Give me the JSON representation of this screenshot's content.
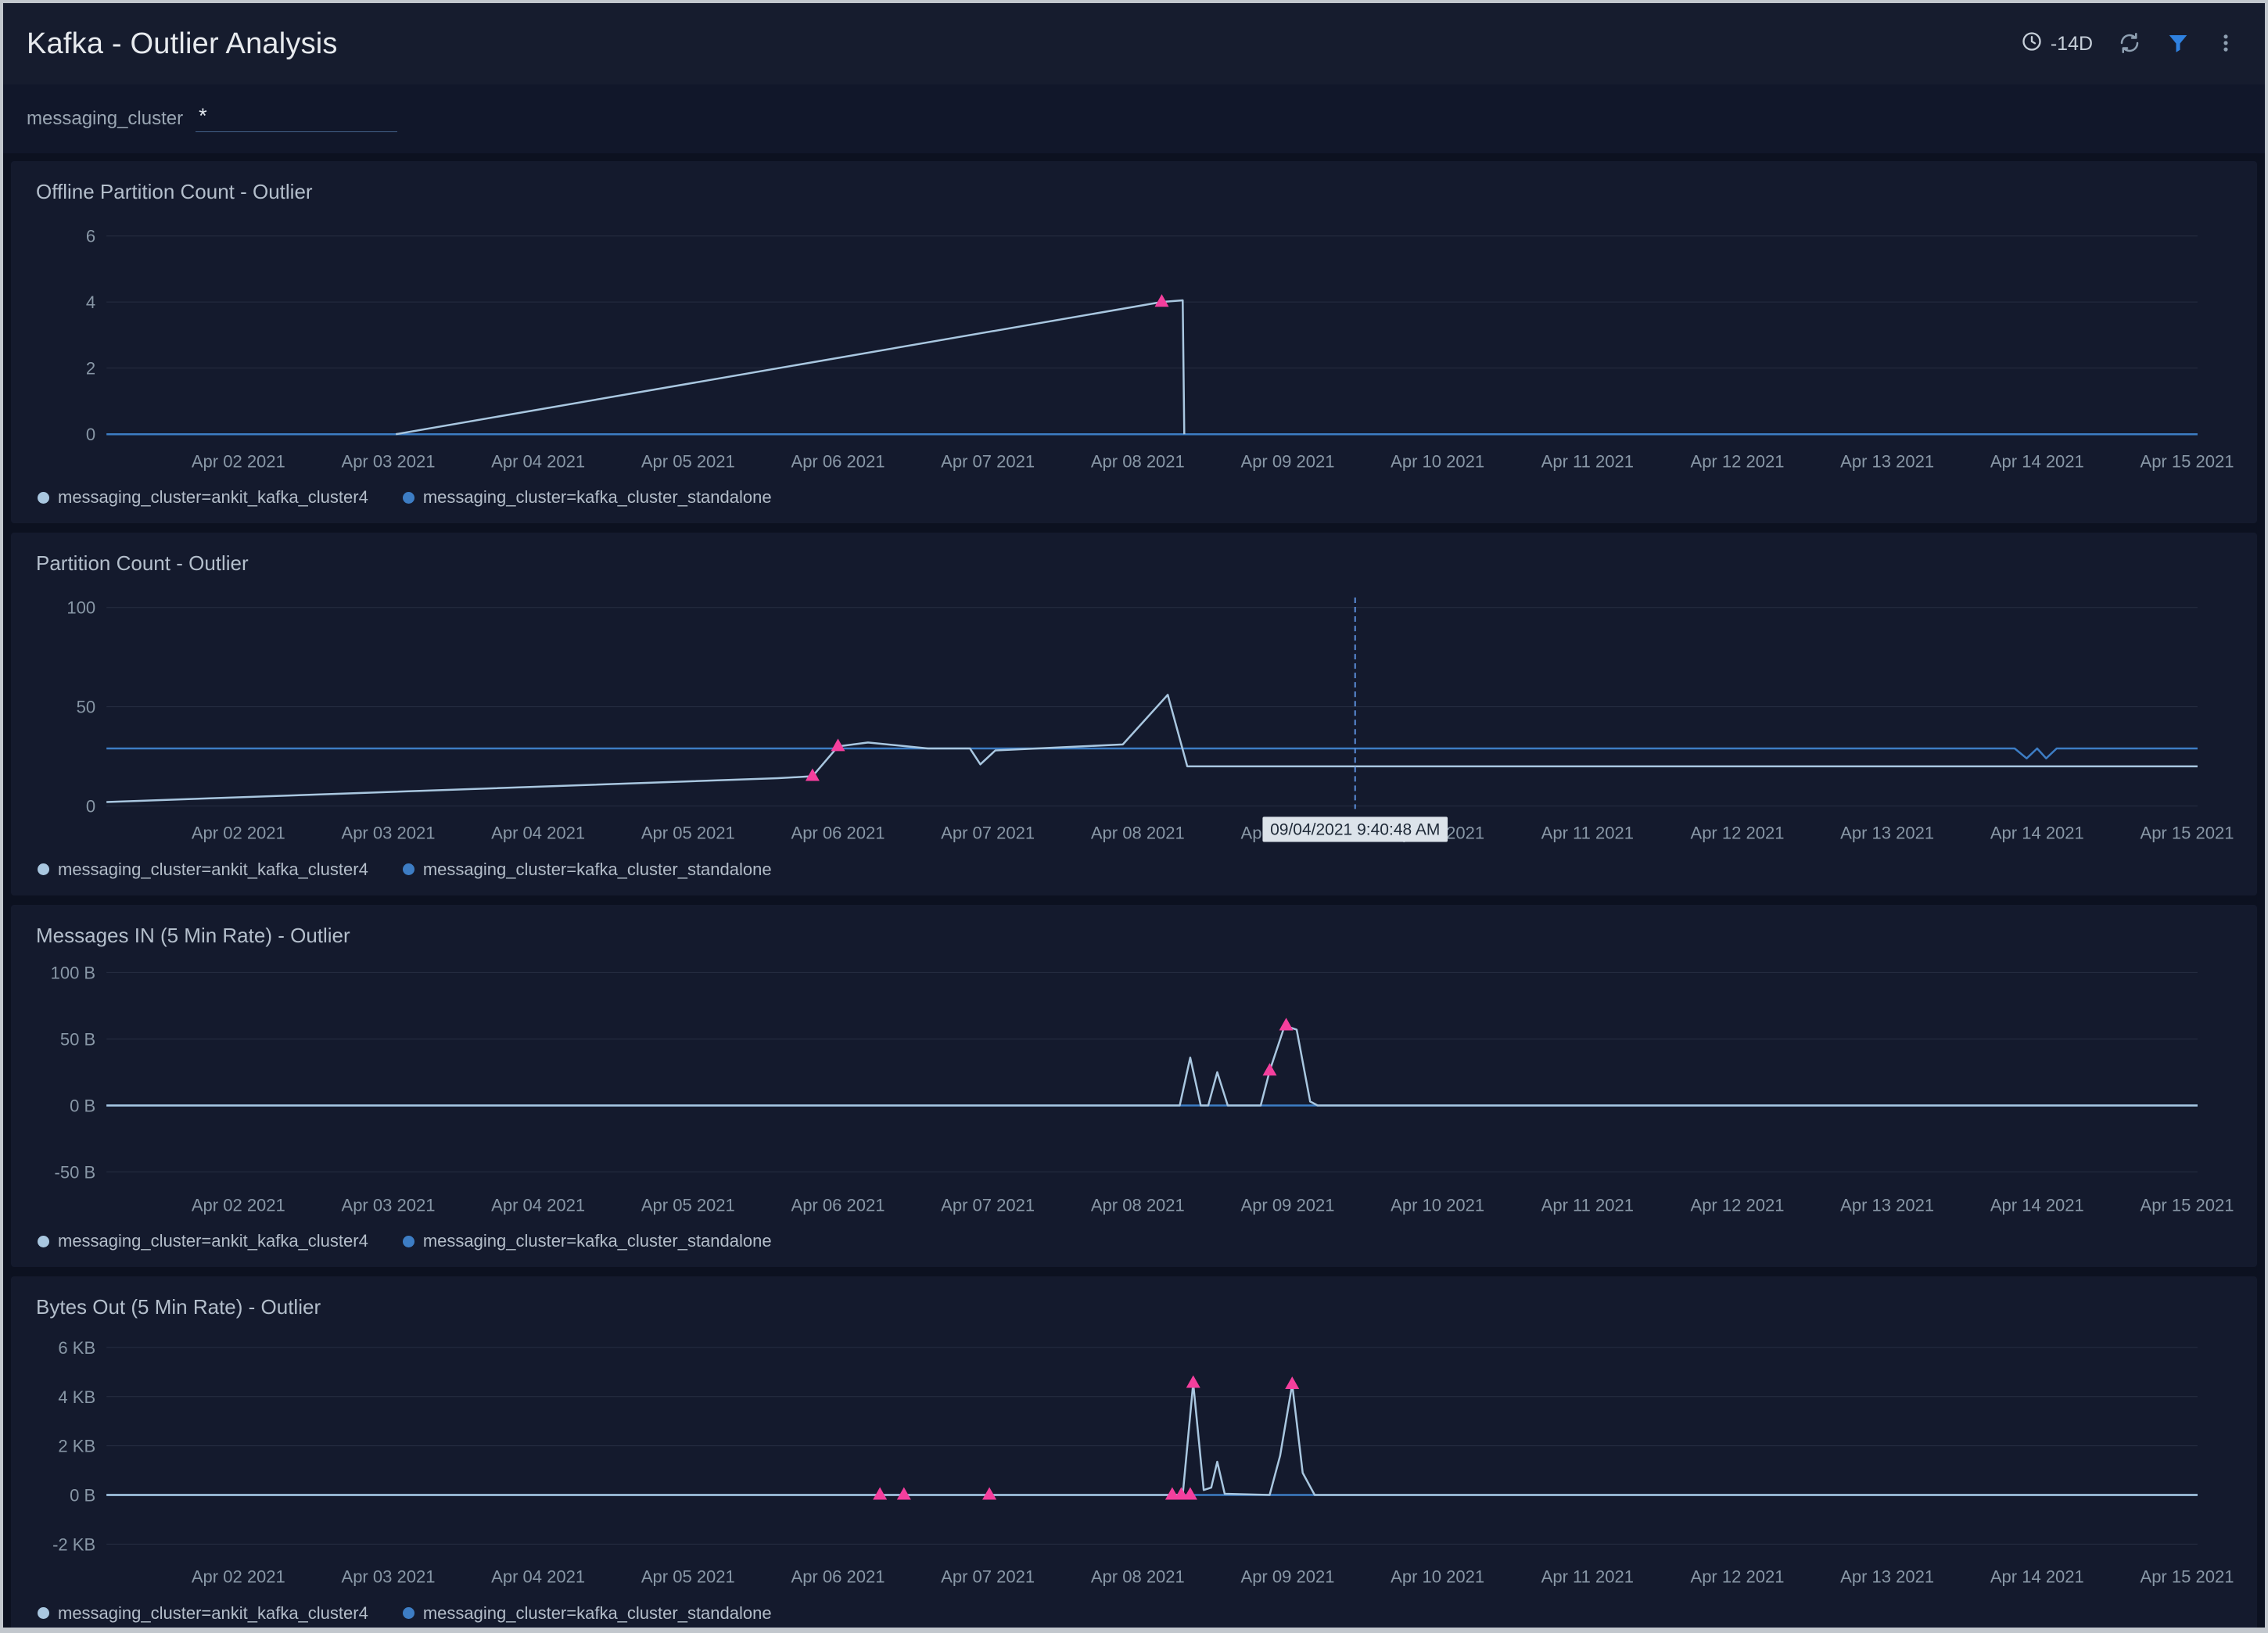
{
  "header": {
    "title": "Kafka - Outlier Analysis",
    "time_range": "-14D",
    "filter_accent": "#2f81e0"
  },
  "filter": {
    "label": "messaging_cluster",
    "value": "*"
  },
  "legend": [
    {
      "label": "messaging_cluster=ankit_kafka_cluster4",
      "color": "#a9c7e0"
    },
    {
      "label": "messaging_cluster=kafka_cluster_standalone",
      "color": "#3d7dc4"
    }
  ],
  "x_axis": {
    "xlim": [
      1.12,
      15.07
    ],
    "ticks": [
      {
        "d": 2,
        "label": "Apr 02 2021"
      },
      {
        "d": 3,
        "label": "Apr 03 2021"
      },
      {
        "d": 4,
        "label": "Apr 04 2021"
      },
      {
        "d": 5,
        "label": "Apr 05 2021"
      },
      {
        "d": 6,
        "label": "Apr 06 2021"
      },
      {
        "d": 7,
        "label": "Apr 07 2021"
      },
      {
        "d": 8,
        "label": "Apr 08 2021"
      },
      {
        "d": 9,
        "label": "Apr 09 2021"
      },
      {
        "d": 10,
        "label": "Apr 10 2021"
      },
      {
        "d": 11,
        "label": "Apr 11 2021"
      },
      {
        "d": 12,
        "label": "Apr 12 2021"
      },
      {
        "d": 13,
        "label": "Apr 13 2021"
      },
      {
        "d": 14,
        "label": "Apr 14 2021"
      },
      {
        "d": 15,
        "label": "Apr 15 2021"
      }
    ]
  },
  "chart_data": [
    {
      "type": "line",
      "title": "Offline Partition Count - Outlier",
      "unit": "count",
      "ylim": [
        -0.1,
        6.3
      ],
      "yticks": [
        {
          "v": 0,
          "label": "0"
        },
        {
          "v": 2,
          "label": "2"
        },
        {
          "v": 4,
          "label": "4"
        },
        {
          "v": 6,
          "label": "6"
        }
      ],
      "series": [
        {
          "name": "messaging_cluster=ankit_kafka_cluster4",
          "color": "#a9c7e0",
          "points": [
            [
              3.05,
              0
            ],
            [
              8.16,
              4.0
            ],
            [
              8.3,
              4.05
            ],
            [
              8.31,
              0
            ]
          ]
        },
        {
          "name": "messaging_cluster=kafka_cluster_standalone",
          "color": "#3d7dc4",
          "points": [
            [
              1.12,
              0
            ],
            [
              15.07,
              0
            ]
          ]
        }
      ],
      "outliers": [
        [
          8.16,
          4.0
        ]
      ]
    },
    {
      "type": "line",
      "title": "Partition Count - Outlier",
      "unit": "count",
      "ylim": [
        -1.5,
        105
      ],
      "yticks": [
        {
          "v": 0,
          "label": "0"
        },
        {
          "v": 50,
          "label": "50"
        },
        {
          "v": 100,
          "label": "100"
        }
      ],
      "series": [
        {
          "name": "messaging_cluster=ankit_kafka_cluster4",
          "color": "#a9c7e0",
          "points": [
            [
              1.12,
              2
            ],
            [
              5.6,
              14
            ],
            [
              5.83,
              15
            ],
            [
              6.0,
              30
            ],
            [
              6.2,
              32
            ],
            [
              6.6,
              29
            ],
            [
              6.88,
              29
            ],
            [
              6.95,
              21
            ],
            [
              7.05,
              28
            ],
            [
              7.9,
              31
            ],
            [
              8.2,
              56
            ],
            [
              8.33,
              20
            ],
            [
              15.07,
              20
            ]
          ]
        },
        {
          "name": "messaging_cluster=kafka_cluster_standalone",
          "color": "#3d7dc4",
          "points": [
            [
              1.12,
              29
            ],
            [
              13.85,
              29
            ],
            [
              13.93,
              24
            ],
            [
              14.0,
              29
            ],
            [
              14.06,
              24
            ],
            [
              14.13,
              29
            ],
            [
              15.07,
              29
            ]
          ]
        }
      ],
      "outliers": [
        [
          5.83,
          15
        ],
        [
          6.0,
          30
        ]
      ],
      "vline": {
        "d": 9.45,
        "tooltip": "09/04/2021 9:40:48 AM"
      }
    },
    {
      "type": "line",
      "title": "Messages IN (5 Min Rate) - Outlier",
      "unit": "B",
      "ylim": [
        -57,
        102
      ],
      "yticks": [
        {
          "v": -50,
          "label": "-50 B"
        },
        {
          "v": 0,
          "label": "0 B"
        },
        {
          "v": 50,
          "label": "50 B"
        },
        {
          "v": 100,
          "label": "100 B"
        }
      ],
      "series": [
        {
          "name": "messaging_cluster=ankit_kafka_cluster4",
          "color": "#a9c7e0",
          "points": [
            [
              1.12,
              0
            ],
            [
              8.28,
              0
            ],
            [
              8.35,
              36
            ],
            [
              8.42,
              0
            ],
            [
              8.47,
              0
            ],
            [
              8.53,
              25
            ],
            [
              8.6,
              0
            ],
            [
              8.82,
              0
            ],
            [
              8.88,
              26
            ],
            [
              8.98,
              60
            ],
            [
              9.06,
              57
            ],
            [
              9.15,
              3
            ],
            [
              9.2,
              0
            ],
            [
              15.07,
              0
            ]
          ]
        },
        {
          "name": "messaging_cluster=kafka_cluster_standalone",
          "color": "#3d7dc4",
          "points": [
            [
              1.12,
              0
            ],
            [
              15.07,
              0
            ]
          ]
        }
      ],
      "outliers": [
        [
          8.88,
          26
        ],
        [
          8.99,
          60
        ]
      ]
    },
    {
      "type": "line",
      "title": "Bytes Out (5 Min Rate) - Outlier",
      "unit": "KB",
      "ylim": [
        -2.35,
        6.25
      ],
      "yticks": [
        {
          "v": -2,
          "label": "-2 KB"
        },
        {
          "v": 0,
          "label": "0 B"
        },
        {
          "v": 2,
          "label": "2 KB"
        },
        {
          "v": 4,
          "label": "4 KB"
        },
        {
          "v": 6,
          "label": "6 KB"
        }
      ],
      "series": [
        {
          "name": "messaging_cluster=ankit_kafka_cluster4",
          "color": "#a9c7e0",
          "points": [
            [
              1.12,
              0
            ],
            [
              8.3,
              0
            ],
            [
              8.37,
              4.55
            ],
            [
              8.44,
              0.2
            ],
            [
              8.49,
              0.3
            ],
            [
              8.53,
              1.35
            ],
            [
              8.58,
              0.05
            ],
            [
              8.88,
              0
            ],
            [
              8.95,
              1.6
            ],
            [
              9.03,
              4.5
            ],
            [
              9.1,
              0.9
            ],
            [
              9.18,
              0
            ],
            [
              15.07,
              0
            ]
          ]
        },
        {
          "name": "messaging_cluster=kafka_cluster_standalone",
          "color": "#3d7dc4",
          "points": [
            [
              1.12,
              0
            ],
            [
              15.07,
              0
            ]
          ]
        }
      ],
      "outliers": [
        [
          6.28,
          0
        ],
        [
          6.44,
          0
        ],
        [
          7.01,
          0
        ],
        [
          8.23,
          0
        ],
        [
          8.29,
          0
        ],
        [
          8.35,
          0
        ],
        [
          8.37,
          4.55
        ],
        [
          9.03,
          4.5
        ]
      ]
    }
  ],
  "marker_color": "#f43f9d"
}
